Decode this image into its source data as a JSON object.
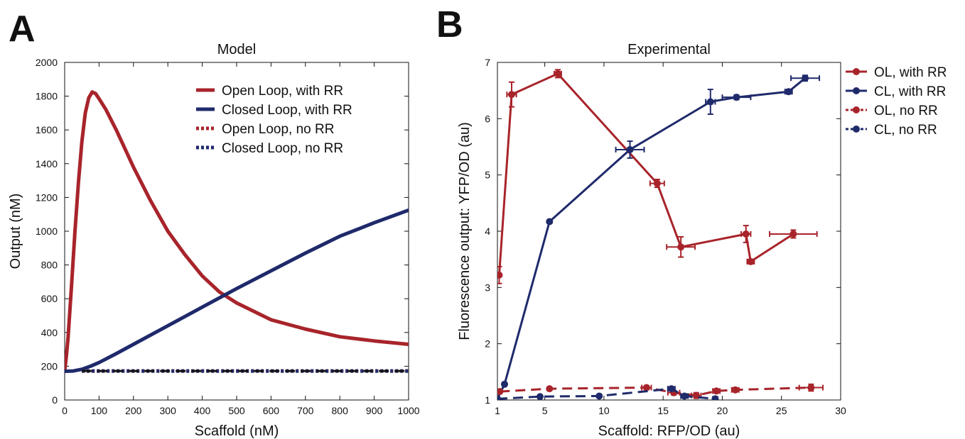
{
  "panels": {
    "a": "A",
    "b": "B"
  },
  "chart_data": [
    {
      "type": "line",
      "title": "Model",
      "xlabel": "Scaffold (nM)",
      "ylabel": "Output (nM)",
      "xlim": [
        0,
        1000
      ],
      "ylim": [
        0,
        2000
      ],
      "xticks": [
        0,
        100,
        200,
        300,
        400,
        500,
        600,
        700,
        800,
        900,
        1000
      ],
      "yticks": [
        0,
        200,
        400,
        600,
        800,
        1000,
        1200,
        1400,
        1600,
        1800,
        2000
      ],
      "legend_position": "top-right",
      "series": [
        {
          "name": "Open Loop, with RR",
          "color": "#a8242b",
          "style": "solid",
          "x": [
            0,
            5,
            10,
            20,
            30,
            40,
            50,
            60,
            70,
            80,
            90,
            100,
            120,
            150,
            200,
            250,
            300,
            350,
            400,
            450,
            500,
            600,
            700,
            800,
            900,
            1000
          ],
          "y": [
            170,
            260,
            370,
            680,
            1000,
            1290,
            1530,
            1700,
            1790,
            1825,
            1815,
            1785,
            1720,
            1600,
            1380,
            1180,
            1000,
            860,
            735,
            640,
            575,
            475,
            420,
            375,
            350,
            330
          ]
        },
        {
          "name": "Closed Loop, with RR",
          "color": "#1f2a6b",
          "style": "solid",
          "x": [
            0,
            25,
            50,
            75,
            100,
            150,
            200,
            300,
            400,
            500,
            600,
            700,
            800,
            900,
            1000
          ],
          "y": [
            170,
            172,
            182,
            200,
            222,
            275,
            330,
            440,
            550,
            660,
            765,
            870,
            970,
            1050,
            1125
          ]
        },
        {
          "name": "Open Loop, no RR",
          "color": "#a8242b",
          "style": "dotted",
          "x": [
            50,
            1000
          ],
          "y": [
            172,
            172
          ]
        },
        {
          "name": "Closed Loop, no RR",
          "color": "#1f2a6b",
          "style": "dotted",
          "x": [
            50,
            1000
          ],
          "y": [
            172,
            172
          ]
        }
      ]
    },
    {
      "type": "line",
      "title": "Experimental",
      "xlabel": "Scaffold: RFP/OD (au)",
      "ylabel": "Fluorescence output: YFP/OD (au)",
      "xlim": [
        1,
        30
      ],
      "ylim": [
        1,
        7
      ],
      "xticks": [
        1,
        5,
        10,
        15,
        20,
        25,
        30
      ],
      "yticks": [
        1,
        2,
        3,
        4,
        5,
        6,
        7
      ],
      "legend_position": "outside-right",
      "series": [
        {
          "name": "OL, with RR",
          "color": "#a8242b",
          "style": "solid",
          "x": [
            1.15,
            2.2,
            6.1,
            14.5,
            16.5,
            22,
            22.4,
            26
          ],
          "y": [
            3.22,
            6.43,
            6.8,
            4.85,
            3.72,
            3.95,
            3.46,
            3.95
          ],
          "xerr": [
            0.1,
            0.4,
            0.3,
            0.6,
            1.2,
            0.4,
            0.3,
            2.0
          ],
          "yerr": [
            0.15,
            0.22,
            0.07,
            0.07,
            0.18,
            0.15,
            0.04,
            0.07
          ]
        },
        {
          "name": "CL, with RR",
          "color": "#1f2a6b",
          "style": "solid",
          "x": [
            1.0,
            1.6,
            5.4,
            12.2,
            19.0,
            21.2,
            25.6,
            27.0
          ],
          "y": [
            1.02,
            1.28,
            4.17,
            5.45,
            6.3,
            6.38,
            6.48,
            6.72
          ],
          "xerr": [
            0.05,
            0.1,
            0.1,
            1.2,
            0.4,
            1.2,
            0.3,
            1.2
          ],
          "yerr": [
            0.02,
            0.03,
            0.03,
            0.15,
            0.22,
            0.04,
            0.04,
            0.05
          ]
        },
        {
          "name": "OL, no RR",
          "color": "#a8242b",
          "style": "dashed",
          "x": [
            1.2,
            5.4,
            13.6,
            15.9,
            17.8,
            19.5,
            21.1,
            27.5
          ],
          "y": [
            1.15,
            1.2,
            1.22,
            1.13,
            1.08,
            1.16,
            1.18,
            1.22
          ],
          "xerr": [
            0.1,
            0.1,
            0.4,
            0.5,
            0.4,
            0.3,
            0.3,
            1.0
          ],
          "yerr": [
            0.03,
            0.03,
            0.03,
            0.04,
            0.05,
            0.03,
            0.03,
            0.06
          ]
        },
        {
          "name": "CL, no RR",
          "color": "#1f2a6b",
          "style": "dashed",
          "x": [
            1.0,
            4.6,
            9.6,
            15.7,
            16.8,
            19.4
          ],
          "y": [
            1.02,
            1.06,
            1.07,
            1.2,
            1.07,
            1.02
          ],
          "xerr": [
            0.05,
            0.1,
            0.1,
            0.3,
            0.3,
            0.2
          ],
          "yerr": [
            0.02,
            0.02,
            0.02,
            0.03,
            0.03,
            0.02
          ]
        }
      ]
    }
  ]
}
